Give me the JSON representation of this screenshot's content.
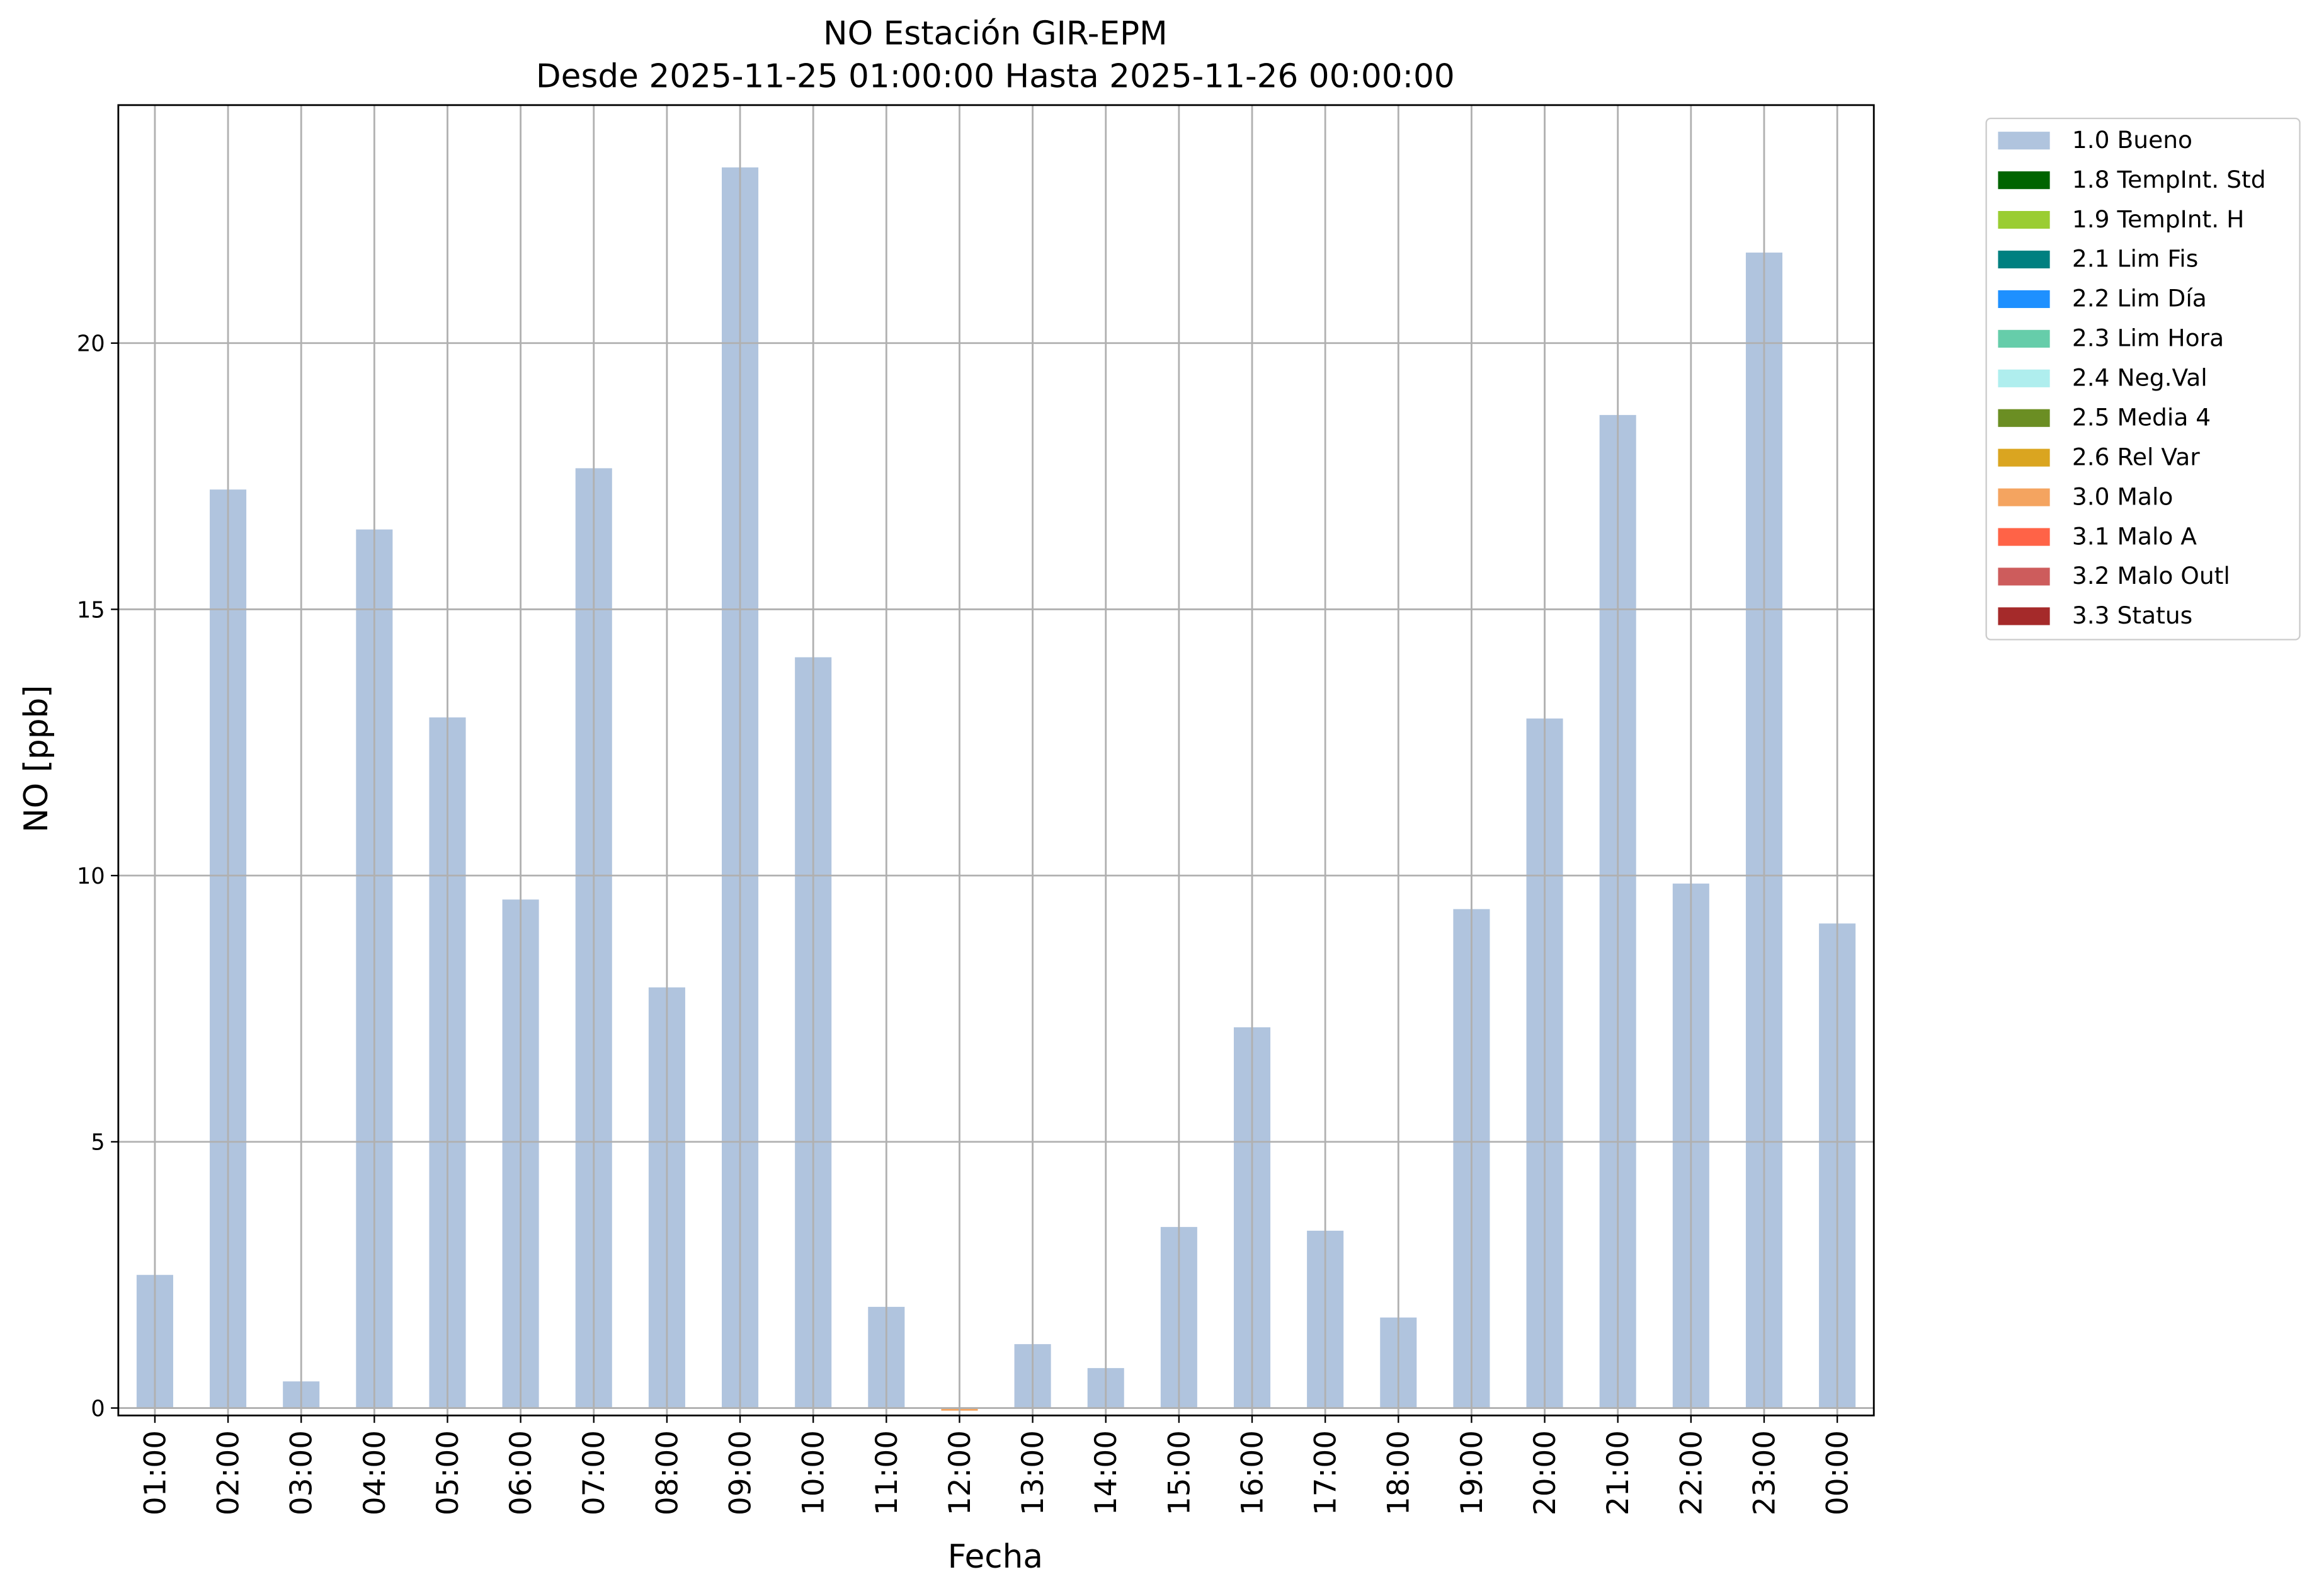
{
  "chart_data": {
    "type": "stacked_bar",
    "title": "NO Estación GIR-EPM",
    "subtitle": "Desde 2025-11-25 01:00:00 Hasta 2025-11-26 00:00:00",
    "x_label": "Fecha",
    "y_label": "NO [ppb]",
    "categories": [
      "01:00",
      "02:00",
      "03:00",
      "04:00",
      "05:00",
      "06:00",
      "07:00",
      "08:00",
      "09:00",
      "10:00",
      "11:00",
      "12:00",
      "13:00",
      "14:00",
      "15:00",
      "16:00",
      "17:00",
      "18:00",
      "19:00",
      "20:00",
      "21:00",
      "22:00",
      "23:00",
      "00:00"
    ],
    "series": [
      {
        "name": "1.0 Bueno",
        "color": "#b0c4de",
        "values": [
          2.5,
          17.25,
          0.5,
          16.5,
          12.97,
          9.55,
          17.65,
          7.9,
          23.3,
          14.1,
          1.9,
          null,
          1.2,
          0.75,
          3.4,
          7.15,
          3.33,
          1.7,
          9.37,
          12.95,
          18.65,
          9.85,
          21.7,
          9.1
        ]
      },
      {
        "name": "1.8 TempInt. Std",
        "color": "#006400",
        "values": [
          null,
          null,
          null,
          null,
          null,
          null,
          null,
          null,
          null,
          null,
          null,
          null,
          null,
          null,
          null,
          null,
          null,
          null,
          null,
          null,
          null,
          null,
          null,
          null
        ]
      },
      {
        "name": "1.9 TempInt. H",
        "color": "#9acd32",
        "values": [
          null,
          null,
          null,
          null,
          null,
          null,
          null,
          null,
          null,
          null,
          null,
          null,
          null,
          null,
          null,
          null,
          null,
          null,
          null,
          null,
          null,
          null,
          null,
          null
        ]
      },
      {
        "name": "2.1 Lim Fis",
        "color": "#008080",
        "values": [
          null,
          null,
          null,
          null,
          null,
          null,
          null,
          null,
          null,
          null,
          null,
          null,
          null,
          null,
          null,
          null,
          null,
          null,
          null,
          null,
          null,
          null,
          null,
          null
        ]
      },
      {
        "name": "2.2 Lim Día",
        "color": "#1e90ff",
        "values": [
          null,
          null,
          null,
          null,
          null,
          null,
          null,
          null,
          null,
          null,
          null,
          null,
          null,
          null,
          null,
          null,
          null,
          null,
          null,
          null,
          null,
          null,
          null,
          null
        ]
      },
      {
        "name": "2.3 Lim Hora",
        "color": "#66cdaa",
        "values": [
          null,
          null,
          null,
          null,
          null,
          null,
          null,
          null,
          null,
          null,
          null,
          null,
          null,
          null,
          null,
          null,
          null,
          null,
          null,
          null,
          null,
          null,
          null,
          null
        ]
      },
      {
        "name": "2.4 Neg.Val",
        "color": "#afeeee",
        "values": [
          null,
          null,
          null,
          null,
          null,
          null,
          null,
          null,
          null,
          null,
          null,
          null,
          null,
          null,
          null,
          null,
          null,
          null,
          null,
          null,
          null,
          null,
          null,
          null
        ]
      },
      {
        "name": "2.5 Media 4",
        "color": "#6b8e23",
        "values": [
          null,
          null,
          null,
          null,
          null,
          null,
          null,
          null,
          null,
          null,
          null,
          null,
          null,
          null,
          null,
          null,
          null,
          null,
          null,
          null,
          null,
          null,
          null,
          null
        ]
      },
      {
        "name": "2.6 Rel Var",
        "color": "#daa520",
        "values": [
          null,
          null,
          null,
          null,
          null,
          null,
          null,
          null,
          null,
          null,
          null,
          null,
          null,
          null,
          null,
          null,
          null,
          null,
          null,
          null,
          null,
          null,
          null,
          null
        ]
      },
      {
        "name": "3.0 Malo",
        "color": "#f4a460",
        "values": [
          null,
          null,
          null,
          null,
          null,
          null,
          null,
          null,
          null,
          null,
          null,
          -0.05,
          null,
          null,
          null,
          null,
          null,
          null,
          null,
          null,
          null,
          null,
          null,
          null
        ]
      },
      {
        "name": "3.1 Malo A",
        "color": "#ff6347",
        "values": [
          null,
          null,
          null,
          null,
          null,
          null,
          null,
          null,
          null,
          null,
          null,
          null,
          null,
          null,
          null,
          null,
          null,
          null,
          null,
          null,
          null,
          null,
          null,
          null
        ]
      },
      {
        "name": "3.2 Malo Outl",
        "color": "#cd5c5c",
        "values": [
          null,
          null,
          null,
          null,
          null,
          null,
          null,
          null,
          null,
          null,
          null,
          null,
          null,
          null,
          null,
          null,
          null,
          null,
          null,
          null,
          null,
          null,
          null,
          null
        ]
      },
      {
        "name": "3.3 Status",
        "color": "#a52a2a",
        "values": [
          null,
          null,
          null,
          null,
          null,
          null,
          null,
          null,
          null,
          null,
          null,
          null,
          null,
          null,
          null,
          null,
          null,
          null,
          null,
          null,
          null,
          null,
          null,
          null
        ]
      }
    ],
    "ylim": [
      -0.14,
      24.47
    ],
    "yticks": [
      0,
      5,
      10,
      15,
      20
    ],
    "grid": true,
    "legend": "outside-upper-right"
  }
}
